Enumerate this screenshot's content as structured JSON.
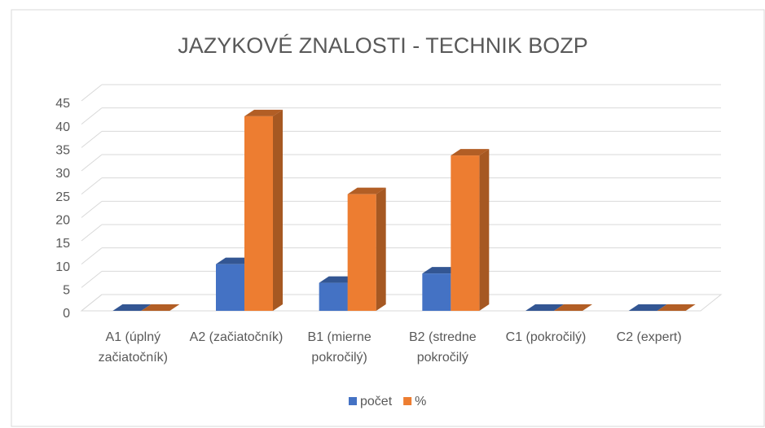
{
  "chart_data": {
    "type": "bar3d",
    "title": "JAZYKOVÉ ZNALOSTI - TECHNIK BOZP",
    "categories": [
      "A1 (úplný začiatočník)",
      "A2 (začiatočník)",
      "B1 (mierne pokročilý)",
      "B2 (stredne pokročilý",
      "C1 (pokročilý)",
      "C2 (expert)"
    ],
    "series": [
      {
        "name": "počet",
        "color": "#4472c4",
        "values": [
          0,
          10,
          6,
          8,
          0,
          0
        ]
      },
      {
        "name": "%",
        "color": "#ed7d31",
        "values": [
          0,
          41.7,
          25,
          33.3,
          0,
          0
        ]
      }
    ],
    "ylim": [
      0,
      45
    ],
    "yticks": [
      0,
      5,
      10,
      15,
      20,
      25,
      30,
      35,
      40,
      45
    ],
    "grid": true,
    "legend": "bottom"
  }
}
